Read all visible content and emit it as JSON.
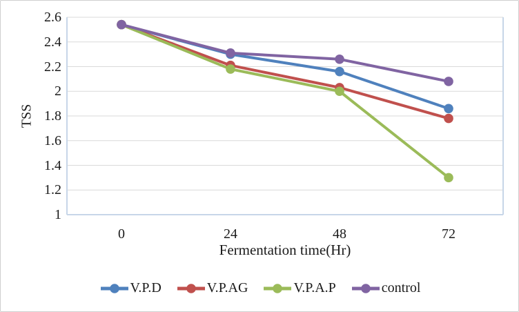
{
  "figure": {
    "background": "#ffffff",
    "border_color": "#cfcfcf",
    "text_color": "#1a1a1a"
  },
  "chart_data": {
    "type": "line",
    "title": "",
    "xlabel": "Fermentation time(Hr)",
    "ylabel": "TSS",
    "categories": [
      "0",
      "24",
      "48",
      "72"
    ],
    "series": [
      {
        "name": "V.P.D",
        "color": "#4F81BD",
        "values": [
          2.54,
          2.3,
          2.16,
          1.86
        ]
      },
      {
        "name": "V.P.AG",
        "color": "#C0504D",
        "values": [
          2.54,
          2.21,
          2.03,
          1.78
        ]
      },
      {
        "name": "V.P.A.P",
        "color": "#9BBB59",
        "values": [
          2.54,
          2.18,
          2.0,
          1.3
        ]
      },
      {
        "name": "control",
        "color": "#8064A2",
        "values": [
          2.54,
          2.31,
          2.26,
          2.08
        ]
      }
    ],
    "y_axis": {
      "min": 1,
      "max": 2.6,
      "step": 0.2,
      "tick_labels": [
        "1",
        "1.2",
        "1.4",
        "1.6",
        "1.8",
        "2",
        "2.2",
        "2.4",
        "2.6"
      ]
    },
    "grid": true,
    "gridline_color": "#D9D9D9",
    "axis_line_color": "#C7D6E8",
    "legend_position": "bottom",
    "marker": "circle",
    "line_width": 4,
    "marker_radius": 6.8
  }
}
